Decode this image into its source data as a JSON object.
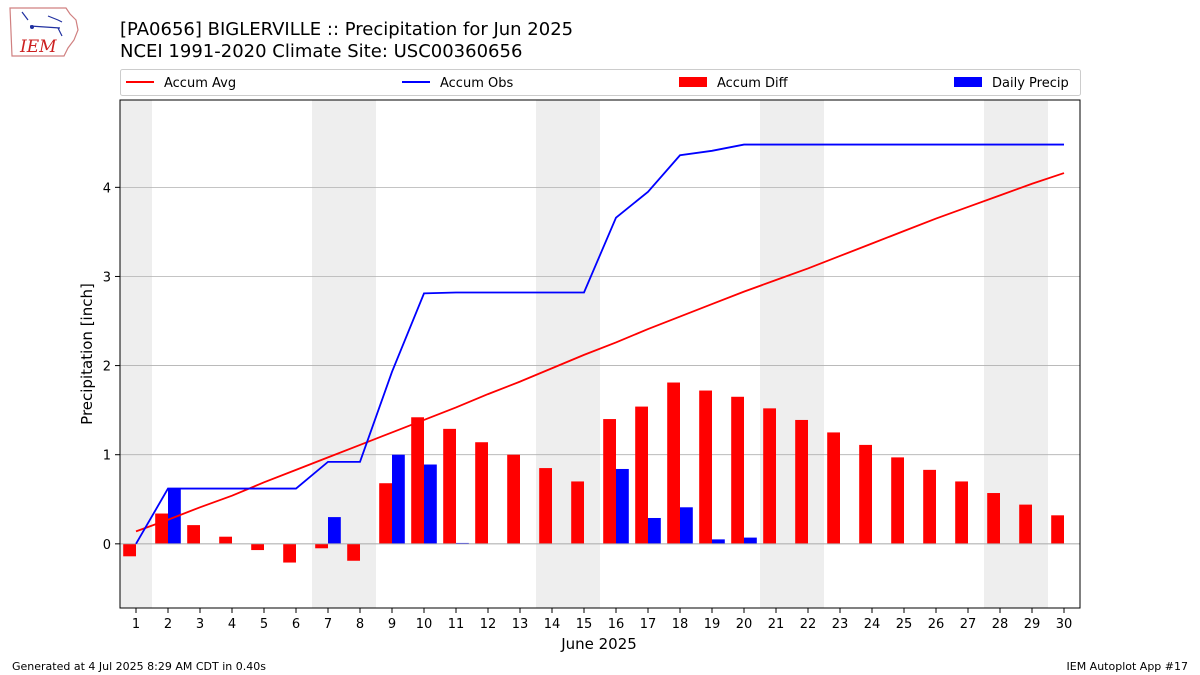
{
  "logo": {
    "text": "IEM"
  },
  "title_line1": "[PA0656] BIGLERVILLE :: Precipitation for Jun 2025",
  "title_line2": "NCEI 1991-2020 Climate Site: USC00360656",
  "footer_left": "Generated at 4 Jul 2025 8:29 AM CDT in 0.40s",
  "footer_right": "IEM Autoplot App #17",
  "colors": {
    "avg": "#ff0000",
    "obs": "#0000ff",
    "diff": "#ff0000",
    "daily": "#0000ff",
    "weekend_band": "#eeeeee",
    "grid": "#b0b0b0"
  },
  "chart_data": {
    "type": "bar",
    "xlabel": "June 2025",
    "ylabel": "Precipitation [inch]",
    "xlim": [
      0.5,
      30.5
    ],
    "ylim": [
      -0.72,
      4.98
    ],
    "yticks": [
      0,
      1,
      2,
      3,
      4
    ],
    "grid": "horizontal",
    "legend_position": "top",
    "days": [
      1,
      2,
      3,
      4,
      5,
      6,
      7,
      8,
      9,
      10,
      11,
      12,
      13,
      14,
      15,
      16,
      17,
      18,
      19,
      20,
      21,
      22,
      23,
      24,
      25,
      26,
      27,
      28,
      29,
      30
    ],
    "shaded_days": [
      1,
      7,
      8,
      14,
      15,
      21,
      22,
      28,
      29
    ],
    "series": [
      {
        "name": "Accum Avg",
        "kind": "line",
        "values": [
          0.14,
          0.27,
          0.41,
          0.54,
          0.69,
          0.83,
          0.97,
          1.11,
          1.25,
          1.39,
          1.53,
          1.68,
          1.82,
          1.97,
          2.12,
          2.26,
          2.41,
          2.55,
          2.69,
          2.83,
          2.96,
          3.09,
          3.23,
          3.37,
          3.51,
          3.65,
          3.78,
          3.91,
          4.04,
          4.16
        ]
      },
      {
        "name": "Accum Obs",
        "kind": "line",
        "values": [
          0.0,
          0.62,
          0.62,
          0.62,
          0.62,
          0.62,
          0.92,
          0.92,
          1.93,
          2.81,
          2.82,
          2.82,
          2.82,
          2.82,
          2.82,
          3.66,
          3.95,
          4.36,
          4.41,
          4.48,
          4.48,
          4.48,
          4.48,
          4.48,
          4.48,
          4.48,
          4.48,
          4.48,
          4.48,
          4.48
        ]
      },
      {
        "name": "Accum Diff",
        "kind": "bar",
        "values": [
          -0.14,
          0.34,
          0.21,
          0.08,
          -0.07,
          -0.21,
          -0.05,
          -0.19,
          0.68,
          1.42,
          1.29,
          1.14,
          1.0,
          0.85,
          0.7,
          1.4,
          1.54,
          1.81,
          1.72,
          1.65,
          1.52,
          1.39,
          1.25,
          1.11,
          0.97,
          0.83,
          0.7,
          0.57,
          0.44,
          0.32
        ]
      },
      {
        "name": "Daily Precip",
        "kind": "bar",
        "values": [
          0.0,
          0.62,
          0,
          0,
          0,
          0,
          0.3,
          0,
          1.0,
          0.89,
          0.01,
          0,
          0,
          0,
          0,
          0.84,
          0.29,
          0.41,
          0.05,
          0.07,
          0,
          0,
          0,
          0,
          0,
          0,
          0,
          0,
          0,
          0
        ]
      }
    ]
  }
}
